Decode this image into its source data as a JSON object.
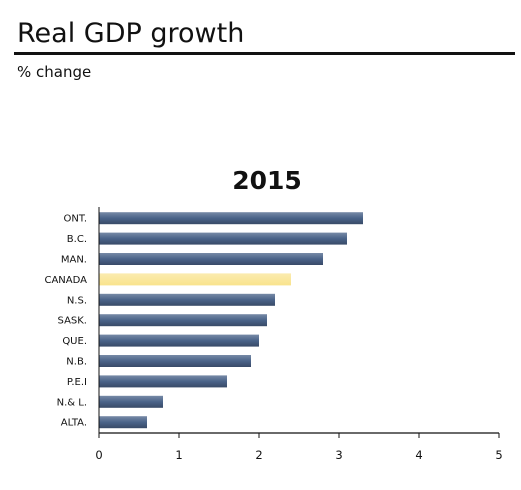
{
  "header": {
    "title": "Real GDP growth",
    "subtitle": "% change"
  },
  "chart_data": {
    "type": "bar",
    "orientation": "horizontal",
    "title": "2015",
    "xlabel": "",
    "ylabel": "",
    "categories": [
      "ONT.",
      "B.C.",
      "MAN.",
      "CANADA",
      "N.S.",
      "SASK.",
      "QUE.",
      "N.B.",
      "P.E.I",
      "N.& L.",
      "ALTA."
    ],
    "values": [
      3.3,
      3.1,
      2.8,
      2.4,
      2.2,
      2.1,
      2.0,
      1.9,
      1.6,
      0.8,
      0.6
    ],
    "highlight": "CANADA",
    "xlim": [
      0,
      5
    ],
    "xticks": [
      "0",
      "1",
      "2",
      "3",
      "4",
      "5"
    ],
    "grid": false,
    "legend": "none",
    "colors": {
      "bar": "#4a6389",
      "bar_highlight": "#f9e38c",
      "axis": "#111111"
    }
  }
}
